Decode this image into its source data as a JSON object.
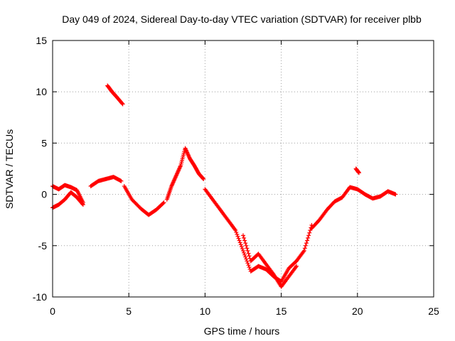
{
  "chart_data": {
    "type": "scatter",
    "title": "Day 049 of 2024, Sidereal Day-to-day VTEC variation (SDTVAR) for receiver plbb",
    "xlabel": "GPS time / hours",
    "ylabel": "SDTVAR / TECUs",
    "xlim": [
      0,
      25
    ],
    "ylim": [
      -10,
      15
    ],
    "xticks": [
      0,
      5,
      10,
      15,
      20,
      25
    ],
    "yticks": [
      -10,
      -5,
      0,
      5,
      10,
      15
    ],
    "grid": true,
    "marker": "+",
    "color": "#ff0000",
    "series": [
      {
        "name": "SDTVAR",
        "segments": [
          {
            "x": [
              0.0,
              0.4,
              0.8,
              1.2,
              1.6,
              2.0
            ],
            "y": [
              0.8,
              0.5,
              0.9,
              0.7,
              0.4,
              -0.8
            ]
          },
          {
            "x": [
              0.0,
              0.4,
              0.8,
              1.2,
              1.6,
              2.0
            ],
            "y": [
              -1.3,
              -1.0,
              -0.5,
              0.2,
              -0.3,
              -1.0
            ]
          },
          {
            "x": [
              2.5,
              3.0,
              3.5,
              4.0,
              4.5
            ],
            "y": [
              0.8,
              1.3,
              1.5,
              1.7,
              1.3
            ]
          },
          {
            "x": [
              3.6,
              3.9,
              4.2,
              4.6
            ],
            "y": [
              10.6,
              10.0,
              9.5,
              8.8
            ]
          },
          {
            "x": [
              4.7,
              5.2,
              5.8,
              6.3,
              6.8,
              7.3
            ],
            "y": [
              0.8,
              -0.5,
              -1.4,
              -2.0,
              -1.5,
              -0.8
            ]
          },
          {
            "x": [
              7.5,
              7.8,
              8.1,
              8.4,
              8.7,
              9.0,
              9.3,
              9.6,
              9.9
            ],
            "y": [
              -0.5,
              0.8,
              1.8,
              2.8,
              4.5,
              3.5,
              2.8,
              2.0,
              1.5
            ]
          },
          {
            "x": [
              10.0,
              10.5,
              11.0,
              11.5,
              12.0,
              12.5,
              13.0,
              13.5,
              14.0,
              14.5,
              15.0,
              15.5,
              16.0,
              16.5,
              17.0
            ],
            "y": [
              0.5,
              -0.5,
              -1.5,
              -2.5,
              -3.5,
              -5.5,
              -7.5,
              -7.0,
              -7.3,
              -8.0,
              -8.5,
              -7.2,
              -6.5,
              -5.5,
              -3.0
            ]
          },
          {
            "x": [
              12.5,
              13.0,
              13.5,
              14.0,
              14.5,
              15.0,
              15.5,
              16.0
            ],
            "y": [
              -4.0,
              -6.5,
              -5.8,
              -6.8,
              -7.8,
              -9.0,
              -8.0,
              -7.0
            ]
          },
          {
            "x": [
              17.0,
              17.5,
              18.0,
              18.5,
              19.0,
              19.5,
              20.0,
              20.5,
              21.0,
              21.5,
              22.0,
              22.5
            ],
            "y": [
              -3.3,
              -2.5,
              -1.5,
              -0.7,
              -0.3,
              0.7,
              0.5,
              0.0,
              -0.4,
              -0.2,
              0.3,
              0.0
            ]
          },
          {
            "x": [
              19.9,
              20.1
            ],
            "y": [
              2.5,
              2.1
            ]
          }
        ]
      }
    ]
  }
}
